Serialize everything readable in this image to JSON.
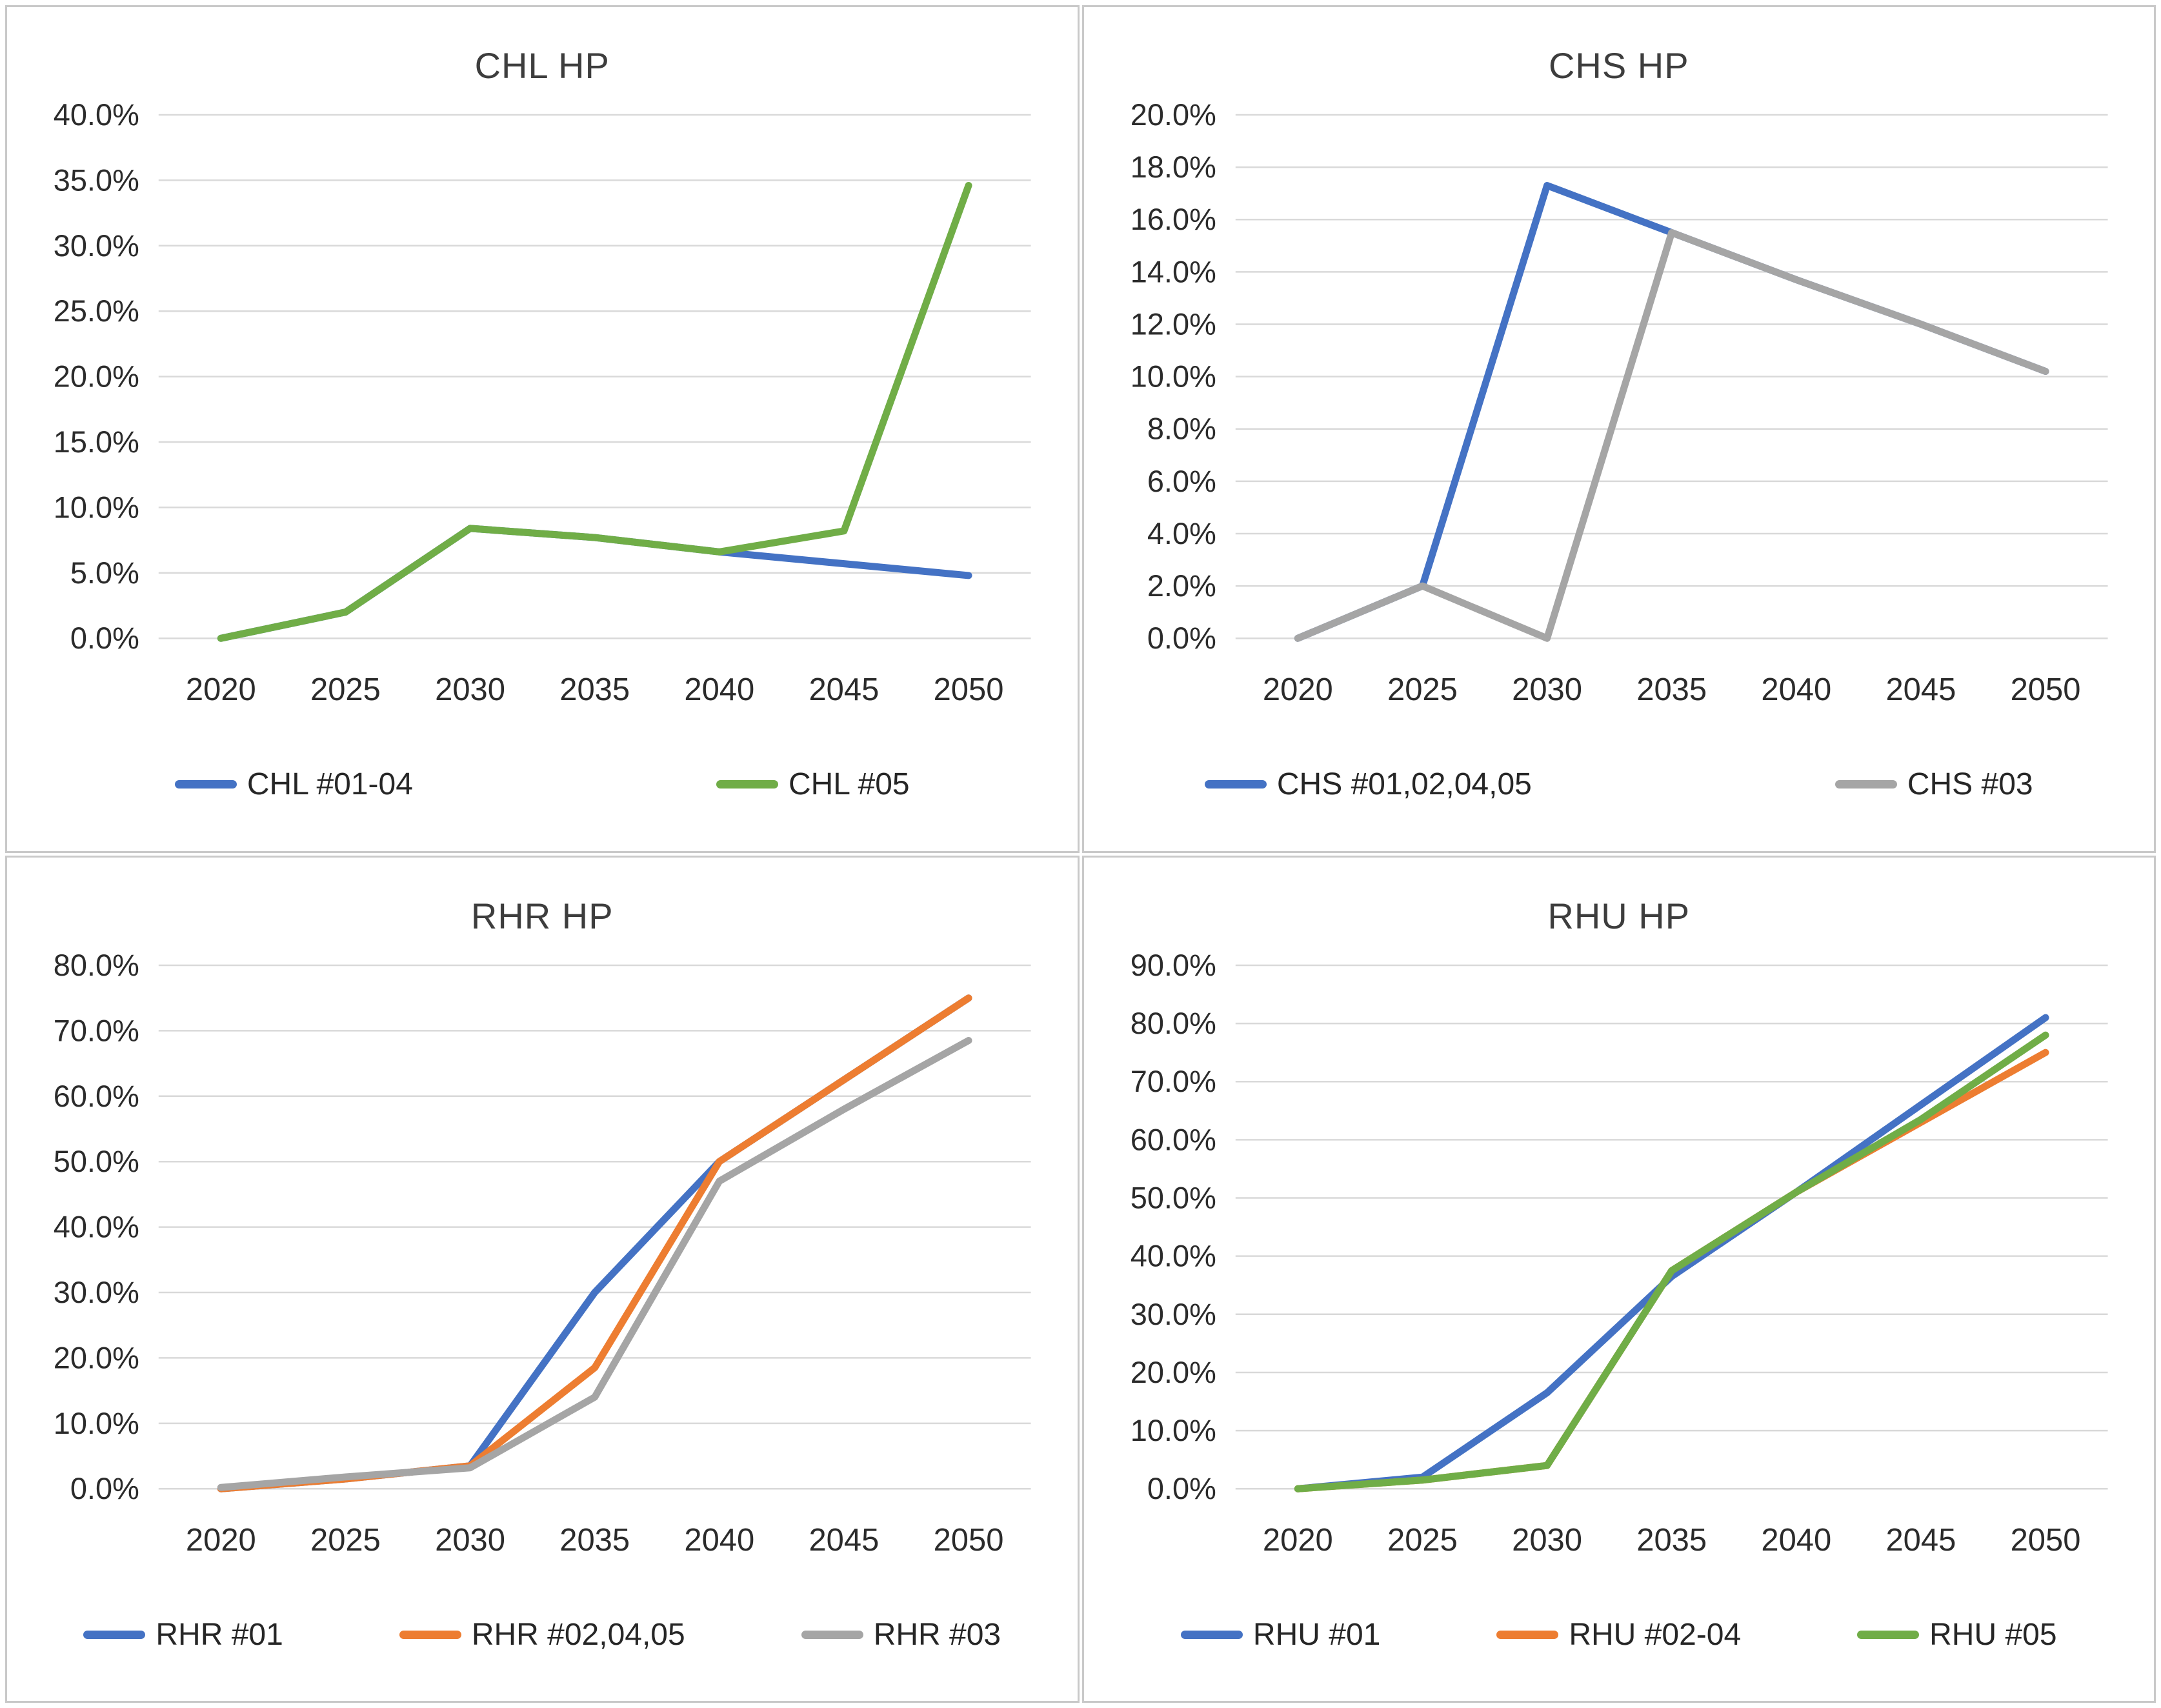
{
  "colors": {
    "series_blue": "#4472C4",
    "series_orange": "#ED7D31",
    "series_gray": "#A5A5A5",
    "series_green": "#70AD47",
    "gridline": "#D9D9D9",
    "panel_border": "#C9C9C9",
    "title_text": "#3D3D3D",
    "axis_text": "#2B2B2B"
  },
  "chart_data": [
    {
      "type": "line",
      "title": "CHL HP",
      "categories": [
        "2020",
        "2025",
        "2030",
        "2035",
        "2040",
        "2045",
        "2050"
      ],
      "xlabel": "",
      "ylabel": "",
      "ylim": [
        0,
        40
      ],
      "y_tick_step": 5,
      "y_tick_labels": [
        "0.0%",
        "5.0%",
        "10.0%",
        "15.0%",
        "20.0%",
        "25.0%",
        "30.0%",
        "35.0%",
        "40.0%"
      ],
      "grid": true,
      "legend_position": "bottom",
      "series": [
        {
          "name": "CHL #01-04",
          "color": "#4472C4",
          "values": [
            0.0,
            2.0,
            8.4,
            7.7,
            6.6,
            5.7,
            4.8
          ]
        },
        {
          "name": "CHL #05",
          "color": "#70AD47",
          "values": [
            0.0,
            2.0,
            8.4,
            7.7,
            6.6,
            8.2,
            34.6
          ]
        }
      ]
    },
    {
      "type": "line",
      "title": "CHS HP",
      "categories": [
        "2020",
        "2025",
        "2030",
        "2035",
        "2040",
        "2045",
        "2050"
      ],
      "xlabel": "",
      "ylabel": "",
      "ylim": [
        0,
        20
      ],
      "y_tick_step": 2,
      "y_tick_labels": [
        "0.0%",
        "2.0%",
        "4.0%",
        "6.0%",
        "8.0%",
        "10.0%",
        "12.0%",
        "14.0%",
        "16.0%",
        "18.0%",
        "20.0%"
      ],
      "grid": true,
      "legend_position": "bottom",
      "series": [
        {
          "name": "CHS #01,02,04,05",
          "color": "#4472C4",
          "values": [
            0.0,
            2.0,
            17.3,
            15.5,
            13.7,
            12.0,
            10.2
          ]
        },
        {
          "name": "CHS #03",
          "color": "#A5A5A5",
          "values": [
            0.0,
            2.0,
            0.0,
            15.5,
            13.7,
            12.0,
            10.2
          ]
        }
      ]
    },
    {
      "type": "line",
      "title": "RHR HP",
      "categories": [
        "2020",
        "2025",
        "2030",
        "2035",
        "2040",
        "2045",
        "2050"
      ],
      "xlabel": "",
      "ylabel": "",
      "ylim": [
        0,
        80
      ],
      "y_tick_step": 10,
      "y_tick_labels": [
        "0.0%",
        "10.0%",
        "20.0%",
        "30.0%",
        "40.0%",
        "50.0%",
        "60.0%",
        "70.0%",
        "80.0%"
      ],
      "grid": true,
      "legend_position": "bottom",
      "series": [
        {
          "name": "RHR #01",
          "color": "#4472C4",
          "values": [
            0.0,
            1.5,
            3.5,
            30.0,
            50.0,
            62.5,
            75.0
          ]
        },
        {
          "name": "RHR #02,04,05",
          "color": "#ED7D31",
          "values": [
            0.0,
            1.5,
            3.5,
            18.5,
            50.0,
            62.5,
            75.0
          ]
        },
        {
          "name": "RHR #03",
          "color": "#A5A5A5",
          "values": [
            0.2,
            1.8,
            3.2,
            14.0,
            47.0,
            58.0,
            68.5
          ]
        }
      ]
    },
    {
      "type": "line",
      "title": "RHU HP",
      "categories": [
        "2020",
        "2025",
        "2030",
        "2035",
        "2040",
        "2045",
        "2050"
      ],
      "xlabel": "",
      "ylabel": "",
      "ylim": [
        0,
        90
      ],
      "y_tick_step": 10,
      "y_tick_labels": [
        "0.0%",
        "10.0%",
        "20.0%",
        "30.0%",
        "40.0%",
        "50.0%",
        "60.0%",
        "70.0%",
        "80.0%",
        "90.0%"
      ],
      "grid": true,
      "legend_position": "bottom",
      "series": [
        {
          "name": "RHU #01",
          "color": "#4472C4",
          "values": [
            0.0,
            2.0,
            16.5,
            36.5,
            51.0,
            66.0,
            81.0
          ]
        },
        {
          "name": "RHU #02-04",
          "color": "#ED7D31",
          "values": [
            0.0,
            1.5,
            4.0,
            37.5,
            51.0,
            63.0,
            75.0
          ]
        },
        {
          "name": "RHU #05",
          "color": "#70AD47",
          "values": [
            0.0,
            1.5,
            4.0,
            37.5,
            51.0,
            63.5,
            78.0
          ]
        }
      ]
    }
  ]
}
